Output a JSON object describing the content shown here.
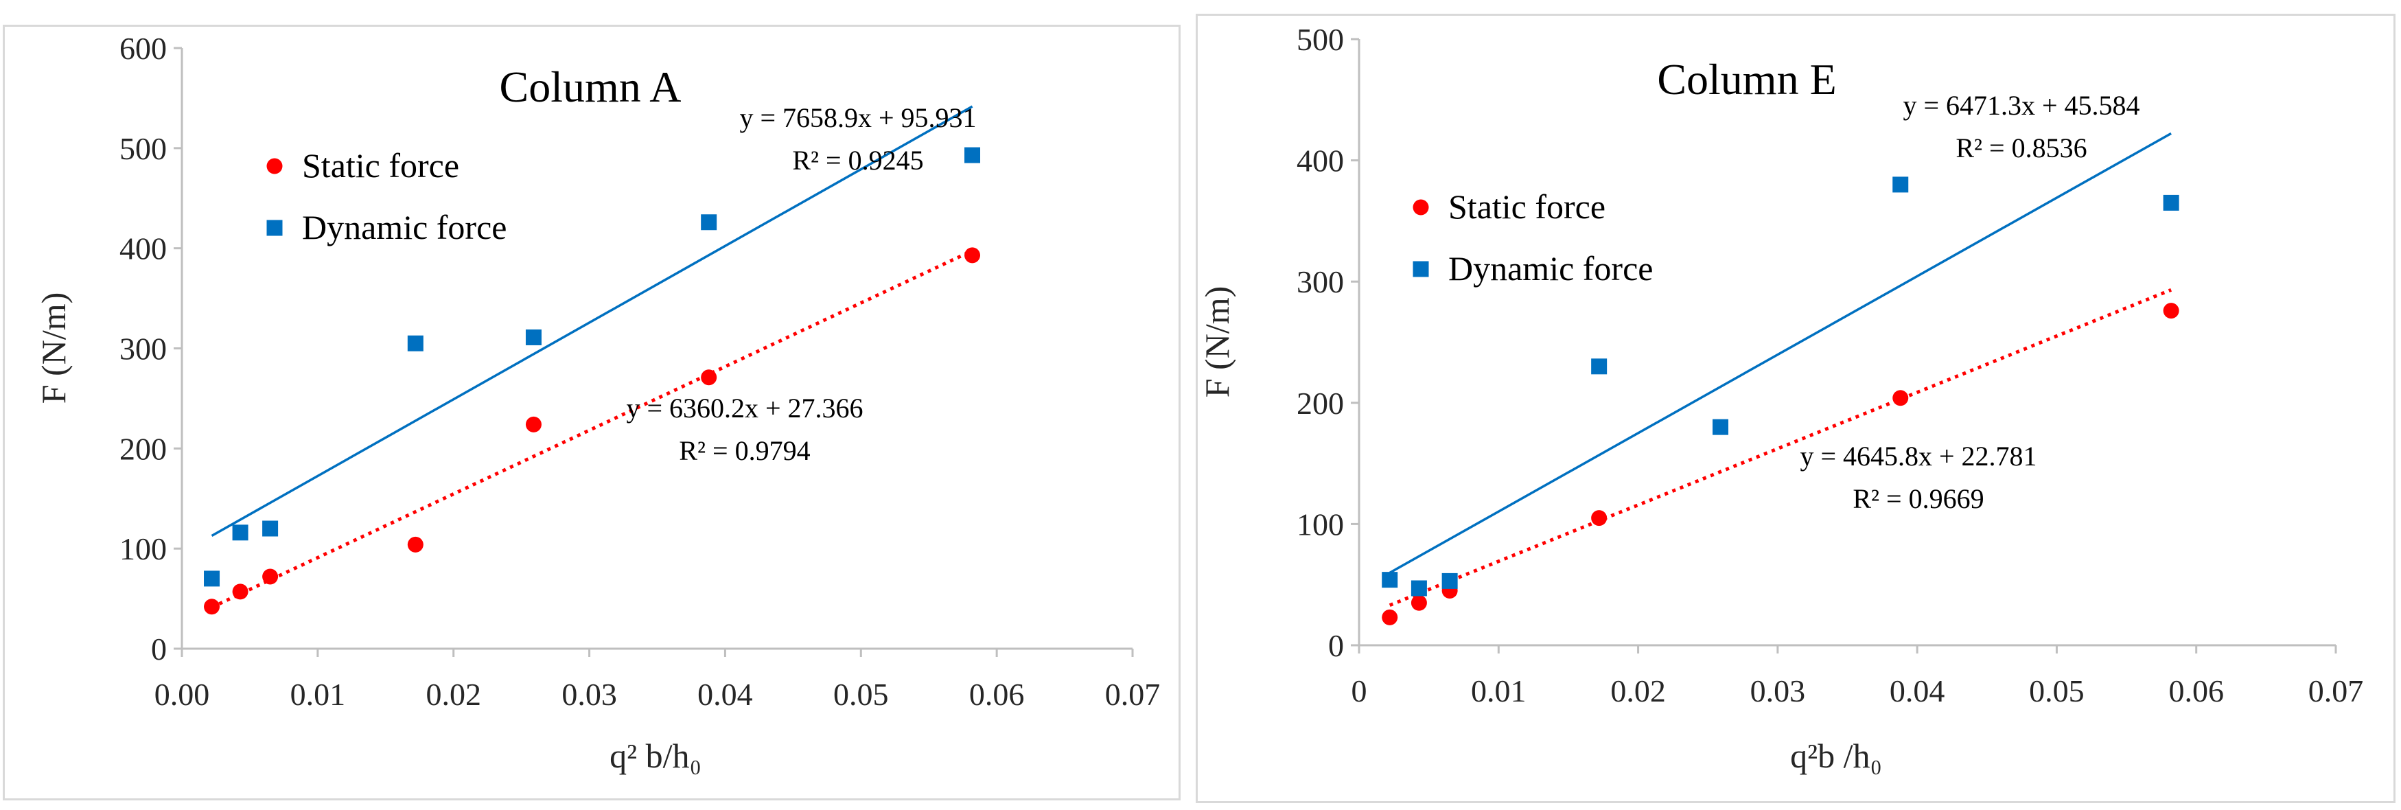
{
  "colors": {
    "static": "#ff0000",
    "dynamic": "#0070c0",
    "axis": "#bfbfbf",
    "text": "#262626"
  },
  "chart_data": [
    {
      "type": "scatter",
      "title": "Column A",
      "xlabel": "q² b/h₀",
      "ylabel": "F (N/m)",
      "xlim": [
        0,
        0.07
      ],
      "ylim": [
        0,
        600
      ],
      "x_ticks": [
        "0.00",
        "0.01",
        "0.02",
        "0.03",
        "0.04",
        "0.05",
        "0.06",
        "0.07"
      ],
      "y_ticks": [
        "0",
        "100",
        "200",
        "300",
        "400",
        "500",
        "600"
      ],
      "series": [
        {
          "name": "Static force",
          "marker": "circle",
          "points": [
            [
              0.0022,
              42
            ],
            [
              0.0043,
              57
            ],
            [
              0.0065,
              72
            ],
            [
              0.0172,
              104
            ],
            [
              0.0259,
              224
            ],
            [
              0.0388,
              271
            ],
            [
              0.0582,
              393
            ]
          ],
          "trendline": {
            "style": "dotted",
            "slope": 6360.2,
            "intercept": 27.366,
            "x_range": [
              0.0022,
              0.0582
            ],
            "equation": "y = 6360.2x + 27.366",
            "r2": "R² = 0.9794"
          }
        },
        {
          "name": "Dynamic force",
          "marker": "square",
          "points": [
            [
              0.0022,
              70
            ],
            [
              0.0043,
              116
            ],
            [
              0.0065,
              120
            ],
            [
              0.0172,
              305
            ],
            [
              0.0259,
              311
            ],
            [
              0.0388,
              426
            ],
            [
              0.0582,
              493
            ]
          ],
          "trendline": {
            "style": "solid",
            "slope": 7658.9,
            "intercept": 95.931,
            "x_range": [
              0.0022,
              0.0582
            ],
            "equation": "y = 7658.9x + 95.931",
            "r2": "R² = 0.9245"
          }
        }
      ]
    },
    {
      "type": "scatter",
      "title": "Column E",
      "xlabel": "q²b /h₀",
      "ylabel": "F (N/m)",
      "xlim": [
        0,
        0.07
      ],
      "ylim": [
        0,
        500
      ],
      "x_ticks": [
        "0",
        "0.01",
        "0.02",
        "0.03",
        "0.04",
        "0.05",
        "0.06",
        "0.07"
      ],
      "y_ticks": [
        "0",
        "100",
        "200",
        "300",
        "400",
        "500"
      ],
      "series": [
        {
          "name": "Static force",
          "marker": "circle",
          "points": [
            [
              0.0022,
              23
            ],
            [
              0.0043,
              35
            ],
            [
              0.0065,
              45
            ],
            [
              0.0172,
              105
            ],
            [
              0.0388,
              204
            ],
            [
              0.0582,
              276
            ]
          ],
          "trendline": {
            "style": "dotted",
            "slope": 4645.8,
            "intercept": 22.781,
            "x_range": [
              0.0022,
              0.0582
            ],
            "equation": "y = 4645.8x + 22.781",
            "r2": "R² = 0.9669"
          }
        },
        {
          "name": "Dynamic force",
          "marker": "square",
          "points": [
            [
              0.0022,
              54
            ],
            [
              0.0043,
              47
            ],
            [
              0.0065,
              53
            ],
            [
              0.0172,
              230
            ],
            [
              0.0259,
              180
            ],
            [
              0.0388,
              380
            ],
            [
              0.0582,
              365
            ]
          ],
          "trendline": {
            "style": "solid",
            "slope": 6471.3,
            "intercept": 45.584,
            "x_range": [
              0.0022,
              0.0582
            ],
            "equation": "y = 6471.3x + 45.584",
            "r2": "R² = 0.8536"
          }
        }
      ]
    }
  ]
}
